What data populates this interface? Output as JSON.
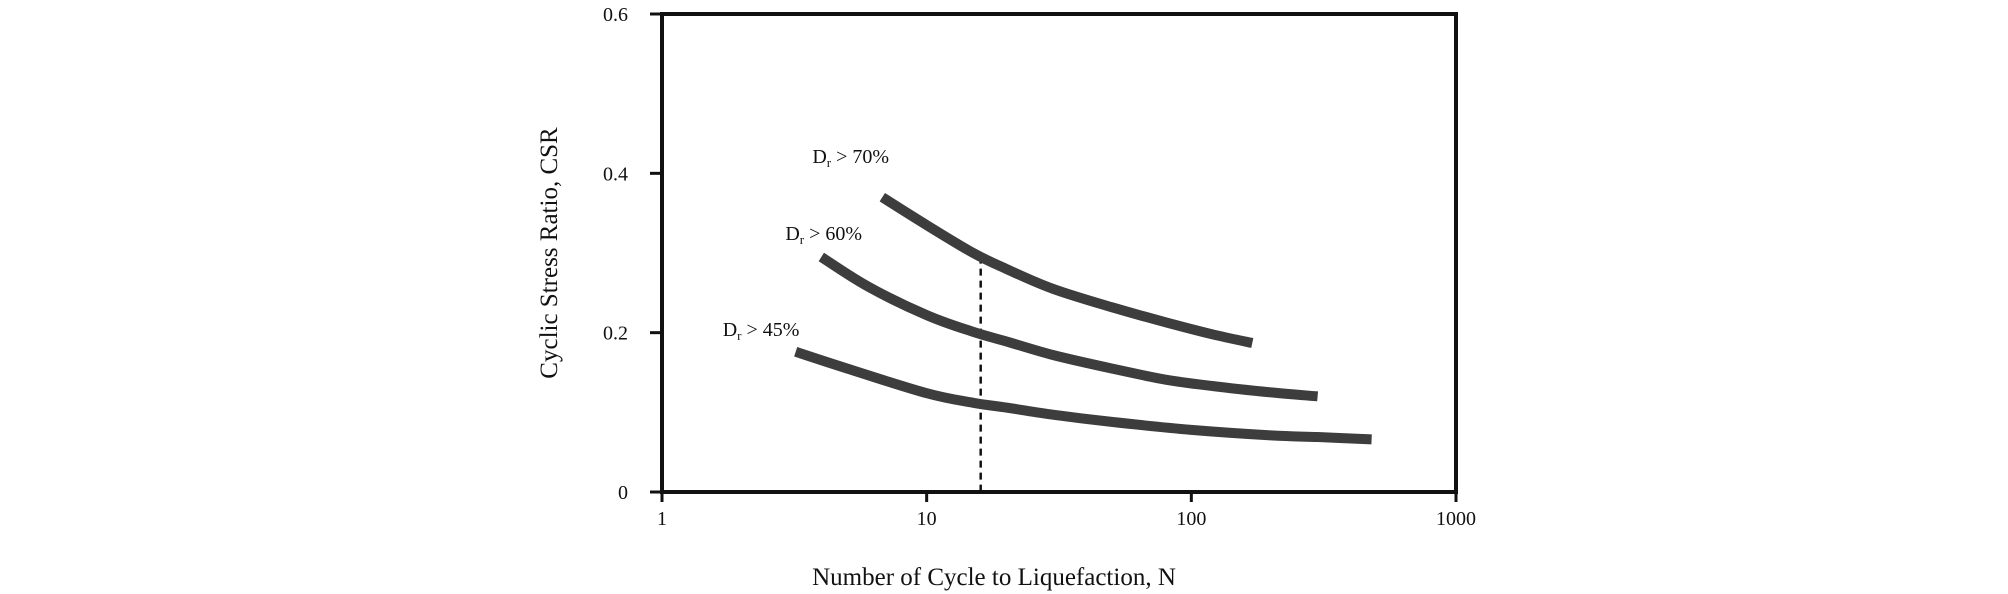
{
  "chart_data": {
    "type": "line",
    "xscale": "log",
    "xlim": [
      1,
      1000
    ],
    "ylim": [
      0,
      0.6
    ],
    "xticks": [
      1,
      10,
      100,
      1000
    ],
    "xtick_labels": [
      "1",
      "10",
      "100",
      "1000"
    ],
    "yticks": [
      0,
      0.2,
      0.4,
      0.6
    ],
    "ytick_labels": [
      "0",
      "0.2",
      "0.4",
      "0.6"
    ],
    "xlabel": "Number of Cycle to Liquefaction, N",
    "ylabel": "Cyclic Stress Ratio, CSR",
    "grid": false,
    "series": [
      {
        "label_main": "D",
        "label_sub": "r",
        "label_rest": " > 70%",
        "x": [
          6.8,
          10,
          15,
          20,
          30,
          50,
          80,
          120,
          170
        ],
        "y": [
          0.37,
          0.335,
          0.3,
          0.28,
          0.255,
          0.232,
          0.213,
          0.198,
          0.187
        ]
      },
      {
        "label_main": "D",
        "label_sub": "r",
        "label_rest": " > 60%",
        "x": [
          4,
          6,
          10,
          15,
          20,
          30,
          50,
          80,
          120,
          200,
          300
        ],
        "y": [
          0.295,
          0.258,
          0.222,
          0.201,
          0.189,
          0.172,
          0.155,
          0.141,
          0.133,
          0.125,
          0.12
        ]
      },
      {
        "label_main": "D",
        "label_sub": "r",
        "label_rest": " > 45%",
        "x": [
          3.2,
          5,
          10,
          15,
          20,
          30,
          50,
          100,
          200,
          300,
          480
        ],
        "y": [
          0.176,
          0.155,
          0.124,
          0.112,
          0.106,
          0.097,
          0.088,
          0.078,
          0.071,
          0.069,
          0.066
        ]
      }
    ],
    "reference_line": {
      "style": "dashed",
      "x": 16
    }
  }
}
